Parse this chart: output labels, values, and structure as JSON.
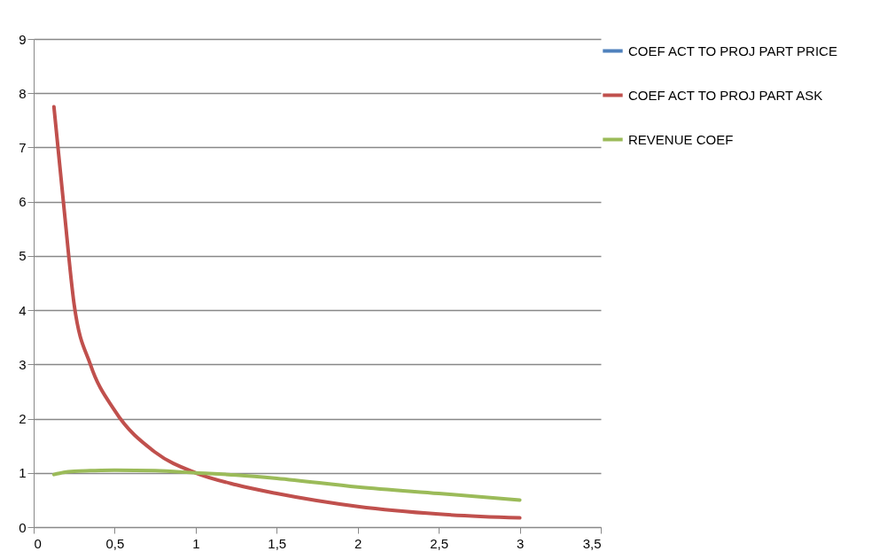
{
  "chart_data": {
    "type": "line",
    "x": [
      0.125,
      0.185,
      0.25,
      0.35,
      0.5,
      0.75,
      1.0,
      1.25,
      1.5,
      2.0,
      2.5,
      3.0
    ],
    "series": [
      {
        "name": "COEF ACT TO PROJ PART PRICE",
        "color": "#4f81bd",
        "values": [
          null,
          null,
          null,
          null,
          null,
          null,
          null,
          null,
          null,
          null,
          null,
          null
        ]
      },
      {
        "name": "COEF ACT TO PROJ PART ASK",
        "color": "#c0504d",
        "values": [
          7.75,
          5.95,
          4.1,
          3.0,
          2.15,
          1.38,
          1.0,
          0.78,
          0.62,
          0.38,
          0.24,
          0.17
        ]
      },
      {
        "name": "REVENUE COEF",
        "color": "#9bbb59",
        "values": [
          0.97,
          1.01,
          1.03,
          1.04,
          1.05,
          1.04,
          1.0,
          0.96,
          0.9,
          0.74,
          0.62,
          0.5
        ]
      }
    ],
    "xlim": [
      0,
      3.5
    ],
    "xticks": [
      0,
      {
        "value": 0.5,
        "label": "0,5"
      },
      1,
      {
        "value": 1.5,
        "label": "1,5"
      },
      2,
      {
        "value": 2.5,
        "label": "2,5"
      },
      3,
      {
        "value": 3.5,
        "label": "3,5"
      }
    ],
    "ylim": [
      0,
      9
    ],
    "yticks": [
      0,
      1,
      2,
      3,
      4,
      5,
      6,
      7,
      8,
      9
    ],
    "grid": "y",
    "legend": "right",
    "marker": "none",
    "line_style": "solid"
  }
}
